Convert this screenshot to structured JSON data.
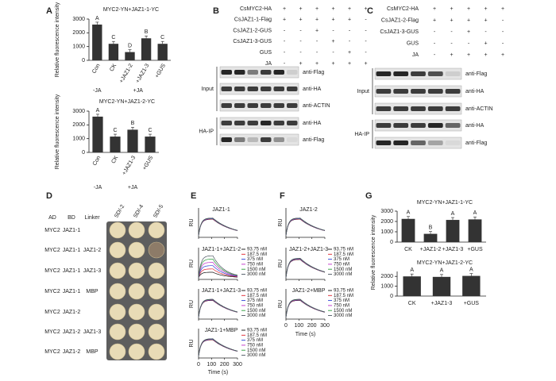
{
  "panel_labels": [
    "A",
    "B",
    "C",
    "D",
    "E",
    "F",
    "G"
  ],
  "chart_data": [
    {
      "type": "bar",
      "title": "MYC2-YN+JAZ1-1-YC",
      "ylabel": "Relative fluorescence intensity",
      "categories": [
        "Con",
        "CK",
        "+JAZ1-2",
        "+JAZ1-3",
        "+GUS"
      ],
      "values": [
        2600,
        1200,
        600,
        1600,
        1200
      ],
      "annotations": [
        "A",
        "C",
        "D",
        "B",
        "C"
      ],
      "group_labels": [
        "-JA",
        "+JA"
      ],
      "ylim": [
        0,
        3000
      ],
      "yticks": [
        0,
        1000,
        2000,
        3000
      ],
      "color": "#333333"
    },
    {
      "type": "bar",
      "title": "MYC2-YN+JAZ1-2-YC",
      "ylabel": "Relative fluorescence intensity",
      "categories": [
        "Con",
        "CK",
        "+JAZ1-3",
        "+GUS"
      ],
      "values": [
        2600,
        1150,
        1650,
        1150
      ],
      "annotations": [
        "A",
        "C",
        "B",
        "C"
      ],
      "group_labels": [
        "-JA",
        "+JA"
      ],
      "ylim": [
        0,
        3000
      ],
      "yticks": [
        0,
        1000,
        2000,
        3000
      ],
      "color": "#333333"
    },
    {
      "type": "bar",
      "title": "MYC2-YN+JAZ1-1-YC",
      "ylabel": "Relative fluorescence intensity",
      "categories": [
        "CK",
        "+JAZ1-2",
        "+JAZ1-3",
        "+GUS"
      ],
      "values": [
        2250,
        800,
        2150,
        2200
      ],
      "annotations": [
        "A",
        "B",
        "A",
        "A"
      ],
      "ylim": [
        0,
        3000
      ],
      "yticks": [
        0,
        1000,
        2000,
        3000
      ],
      "color": "#333333"
    },
    {
      "type": "bar",
      "title": "MYC2-YN+JAZ1-2-YC",
      "categories": [
        "CK",
        "+JAZ1-3",
        "+GUS"
      ],
      "values": [
        2000,
        1950,
        2050
      ],
      "annotations": [
        "A",
        "A",
        "A"
      ],
      "ylim": [
        0,
        2500
      ],
      "yticks": [
        0,
        1000,
        2000
      ],
      "color": "#333333"
    }
  ],
  "blots": [
    {
      "conditions": [
        {
          "label": "CsMYC2-HA",
          "signs": [
            "+",
            "+",
            "+",
            "+",
            "+",
            "+"
          ]
        },
        {
          "label": "CsJAZ1-1-Flag",
          "signs": [
            "+",
            "+",
            "+",
            "+",
            "+",
            "-"
          ]
        },
        {
          "label": "CsJAZ1-2-GUS",
          "signs": [
            "-",
            "-",
            "+",
            "-",
            "-",
            "-"
          ]
        },
        {
          "label": "CsJAZ1-3-GUS",
          "signs": [
            "-",
            "-",
            "-",
            "+",
            "-",
            "-"
          ]
        },
        {
          "label": "GUS",
          "signs": [
            "-",
            "-",
            "-",
            "-",
            "+",
            "-"
          ]
        },
        {
          "label": "JA",
          "signs": [
            "-",
            "+",
            "+",
            "+",
            "+",
            "+"
          ]
        }
      ],
      "groups": [
        {
          "label": "Input",
          "antibodies": [
            "anti-Flag",
            "anti-HA",
            "anti-ACTIN"
          ]
        },
        {
          "label": "HA-IP",
          "antibodies": [
            "anti-HA",
            "anti-Flag"
          ]
        }
      ]
    },
    {
      "conditions": [
        {
          "label": "CsMYC2-HA",
          "signs": [
            "+",
            "+",
            "+",
            "+",
            "+"
          ]
        },
        {
          "label": "CsJAZ1-2-Flag",
          "signs": [
            "+",
            "+",
            "+",
            "+",
            "-"
          ]
        },
        {
          "label": "CsJAZ1-3-GUS",
          "signs": [
            "-",
            "-",
            "+",
            "-",
            "-"
          ]
        },
        {
          "label": "GUS",
          "signs": [
            "-",
            "-",
            "-",
            "+",
            "-"
          ]
        },
        {
          "label": "JA",
          "signs": [
            "-",
            "+",
            "+",
            "+",
            "+"
          ]
        }
      ],
      "groups": [
        {
          "label": "Input",
          "antibodies": [
            "anti-Flag",
            "anti-HA",
            "anti-ACTIN"
          ]
        },
        {
          "label": "HA-IP",
          "antibodies": [
            "anti-HA",
            "anti-Flag"
          ]
        }
      ]
    }
  ],
  "y2h": {
    "headers": [
      "AD",
      "BD",
      "Linker",
      "SD/-2",
      "SD/-4",
      "SD/-5"
    ],
    "rows": [
      {
        "ad": "MYC2",
        "bd": "JAZ1-1"
      },
      {
        "ad": "MYC2",
        "bd": "JAZ1-1",
        "linker": "JAZ1-2"
      },
      {
        "ad": "MYC2",
        "bd": "JAZ1-1",
        "linker": "JAZ1-3"
      },
      {
        "ad": "MYC2",
        "bd": "JAZ1-1",
        "linker": "MBP"
      },
      {
        "ad": "MYC2",
        "bd": "JAZ1-2"
      },
      {
        "ad": "MYC2",
        "bd": "JAZ1-2",
        "linker": "JAZ1-3"
      },
      {
        "ad": "MYC2",
        "bd": "JAZ1-2",
        "linker": "MBP"
      }
    ]
  },
  "spr": {
    "xlim": [
      0,
      300
    ],
    "xticks": [
      0,
      100,
      200,
      300
    ],
    "xlabel": "Time (s)",
    "ylabel": "RU",
    "concentrations": [
      {
        "label": "93.75 nM",
        "color": "#111111"
      },
      {
        "label": "187.5 nM",
        "color": "#e0202a"
      },
      {
        "label": "375 nM",
        "color": "#2a3fd6"
      },
      {
        "label": "750 nM",
        "color": "#c030c8"
      },
      {
        "label": "1500 nM",
        "color": "#2a9a3a"
      },
      {
        "label": "3000 nM",
        "color": "#4a5560"
      }
    ],
    "panels": [
      {
        "plots": [
          {
            "title": "JAZ1-1",
            "legend": false
          },
          {
            "title": "JAZ1-1+JAZ1-2",
            "legend": true
          },
          {
            "title": "JAZ1-1+JAZ1-3",
            "legend": true
          },
          {
            "title": "JAZ1-1+MBP",
            "legend": true
          }
        ]
      },
      {
        "plots": [
          {
            "title": "JAZ1-2",
            "legend": false
          },
          {
            "title": "JAZ1-2+JAZ1-3",
            "legend": true
          },
          {
            "title": "JAZ1-2+MBP",
            "legend": true
          }
        ]
      }
    ]
  }
}
